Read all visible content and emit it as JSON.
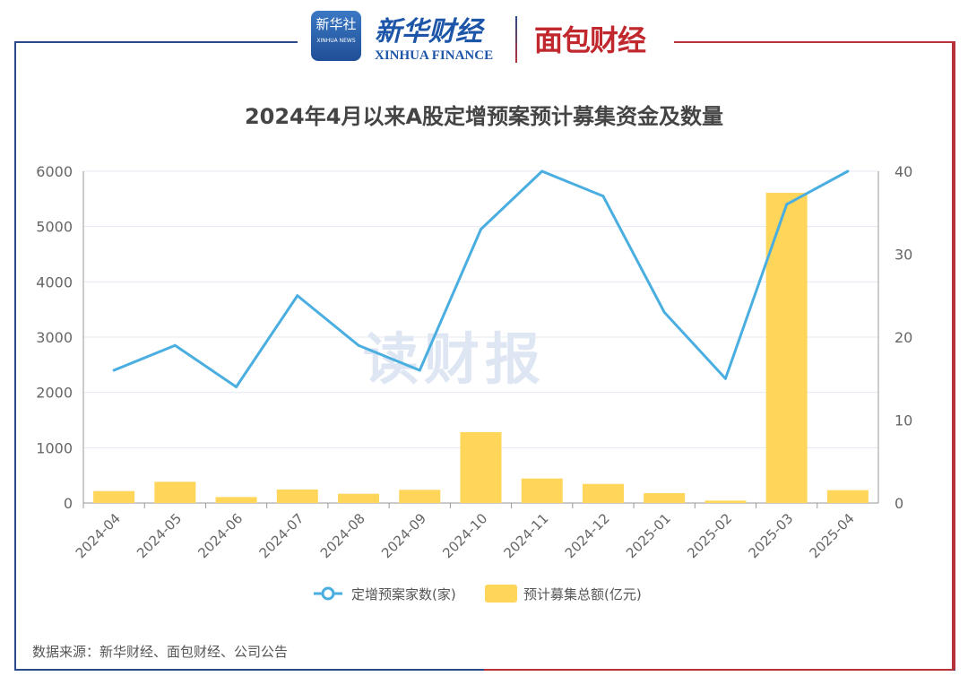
{
  "header": {
    "logo_xinhua_news": "新华社",
    "logo_xinhua_news_en": "XINHUA NEWS",
    "logo_xinhua_finance": "新华财经",
    "logo_xinhua_finance_en": "XINHUA FINANCE",
    "logo_mianbao": "面包财经"
  },
  "watermark": "读财报",
  "source": "数据来源：新华财经、面包财经、公司公告",
  "colors": {
    "line": "#4aaee0",
    "bar": "#ffd55a",
    "frame_left": "#2a4a8c",
    "frame_right": "#b8323a"
  },
  "chart_data": {
    "type": "bar+line",
    "title": "2024年4月以来A股定增预案预计募集资金及数量",
    "categories": [
      "2024-04",
      "2024-05",
      "2024-06",
      "2024-07",
      "2024-08",
      "2024-09",
      "2024-10",
      "2024-11",
      "2024-12",
      "2025-01",
      "2025-02",
      "2025-03",
      "2025-04"
    ],
    "series": [
      {
        "name": "定增预案家数(家)",
        "type": "line",
        "axis": "right",
        "values": [
          16,
          19,
          14,
          25,
          19,
          16,
          33,
          40,
          37,
          23,
          15,
          36,
          40
        ]
      },
      {
        "name": "预计募集总额(亿元)",
        "type": "bar",
        "axis": "left",
        "values": [
          216,
          384,
          108,
          243,
          167,
          238,
          1281,
          443,
          345,
          178,
          43,
          5610,
          232
        ]
      }
    ],
    "y_left": {
      "ylim": [
        0,
        6000
      ],
      "ticks": [
        "0",
        "1000",
        "2000",
        "3000",
        "4000",
        "5000",
        "6000"
      ]
    },
    "y_right": {
      "ylim": [
        0,
        40
      ],
      "ticks": [
        "0",
        "10",
        "20",
        "30",
        "40"
      ]
    },
    "grid": true,
    "legend": "bottom"
  }
}
